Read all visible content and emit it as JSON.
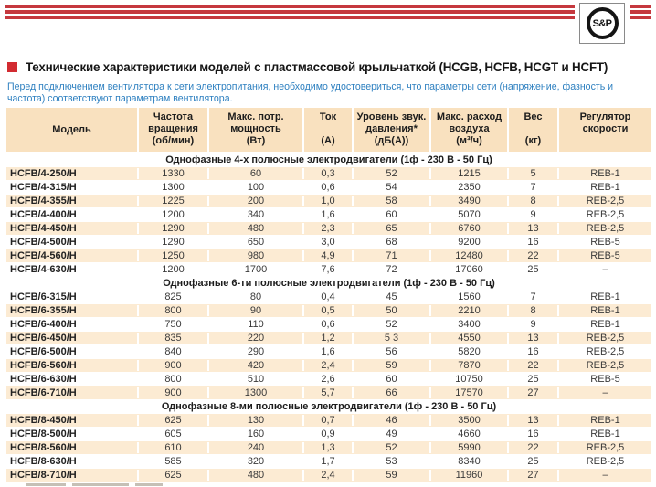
{
  "page": {
    "logo_text": "S&P"
  },
  "title": {
    "text": "Технические характеристики моделей с пластмассовой крыльчаткой (HCGB, HCFB, HCGT и HCFT)"
  },
  "intro": {
    "text": "Перед подключением вентилятора к сети электропитания, необходимо удостовериться, что параметры сети (напряжение, фазность и частота) соответствуют параметрам вентилятора."
  },
  "colors": {
    "accent_red": "#c5383e",
    "bullet_red": "#d22b31",
    "header_peach": "#f9e1bf",
    "row_peach": "#fcebd3",
    "info_blue": "#2e80c0"
  },
  "table": {
    "columns": [
      {
        "id": "model",
        "label_lines": [
          "Модель"
        ]
      },
      {
        "id": "rpm",
        "label_lines": [
          "Частота",
          "вращения",
          "(об/мин)"
        ]
      },
      {
        "id": "power",
        "label_lines": [
          "Макс. потр.",
          "мощность",
          "(Вт)"
        ]
      },
      {
        "id": "current",
        "label_lines": [
          "Ток",
          "",
          "(А)"
        ]
      },
      {
        "id": "noise",
        "label_lines": [
          "Уровень звук.",
          "давления*",
          "(дБ(А))"
        ]
      },
      {
        "id": "airflow",
        "label_lines": [
          "Макс. расход",
          "воздуха",
          "(м³/ч)"
        ]
      },
      {
        "id": "weight",
        "label_lines": [
          "Вес",
          "",
          "(кг)"
        ]
      },
      {
        "id": "regulator",
        "label_lines": [
          "Регулятор",
          "скорости"
        ]
      }
    ],
    "sections": [
      {
        "header": "Однофазные 4-х полюсные электродвигатели (1ф - 230 В - 50 Гц)",
        "rows": [
          [
            "HCFB/4-250/H",
            "1330",
            "60",
            "0,3",
            "52",
            "1215",
            "5",
            "REB-1"
          ],
          [
            "HCFB/4-315/H",
            "1300",
            "100",
            "0,6",
            "54",
            "2350",
            "7",
            "REB-1"
          ],
          [
            "HCFB/4-355/H",
            "1225",
            "200",
            "1,0",
            "58",
            "3490",
            "8",
            "REB-2,5"
          ],
          [
            "HCFB/4-400/H",
            "1200",
            "340",
            "1,6",
            "60",
            "5070",
            "9",
            "REB-2,5"
          ],
          [
            "HCFB/4-450/H",
            "1290",
            "480",
            "2,3",
            "65",
            "6760",
            "13",
            "REB-2,5"
          ],
          [
            "HCFB/4-500/H",
            "1290",
            "650",
            "3,0",
            "68",
            "9200",
            "16",
            "REB-5"
          ],
          [
            "HCFB/4-560/H",
            "1250",
            "980",
            "4,9",
            "71",
            "12480",
            "22",
            "REB-5"
          ],
          [
            "HCFB/4-630/H",
            "1200",
            "1700",
            "7,6",
            "72",
            "17060",
            "25",
            "–"
          ]
        ]
      },
      {
        "header": "Однофазные 6-ти полюсные электродвигатели (1ф - 230 В - 50 Гц)",
        "rows": [
          [
            "HCFB/6-315/H",
            "825",
            "80",
            "0,4",
            "45",
            "1560",
            "7",
            "REB-1"
          ],
          [
            "HCFB/6-355/H",
            "800",
            "90",
            "0,5",
            "50",
            "2210",
            "8",
            "REB-1"
          ],
          [
            "HCFB/6-400/H",
            "750",
            "110",
            "0,6",
            "52",
            "3400",
            "9",
            "REB-1"
          ],
          [
            "HCFB/6-450/H",
            "835",
            "220",
            "1,2",
            "5 3",
            "4550",
            "13",
            "REB-2,5"
          ],
          [
            "HCFB/6-500/H",
            "840",
            "290",
            "1,6",
            "56",
            "5820",
            "16",
            "REB-2,5"
          ],
          [
            "HCFB/6-560/H",
            "900",
            "420",
            "2,4",
            "59",
            "7870",
            "22",
            "REB-2,5"
          ],
          [
            "HCFB/6-630/H",
            "800",
            "510",
            "2,6",
            "60",
            "10750",
            "25",
            "REB-5"
          ],
          [
            "HCFB/6-710/H",
            "900",
            "1300",
            "5,7",
            "66",
            "17570",
            "27",
            "–"
          ]
        ]
      },
      {
        "header": "Однофазные 8-ми полюсные электродвигатели (1ф - 230 В - 50 Гц)",
        "rows": [
          [
            "HCFB/8-450/H",
            "625",
            "130",
            "0,7",
            "46",
            "3500",
            "13",
            "REB-1"
          ],
          [
            "HCFB/8-500/H",
            "605",
            "160",
            "0,9",
            "49",
            "4660",
            "16",
            "REB-1"
          ],
          [
            "HCFB/8-560/H",
            "610",
            "240",
            "1,3",
            "52",
            "5990",
            "22",
            "REB-2,5"
          ],
          [
            "HCFB/8-630/H",
            "585",
            "320",
            "1,7",
            "53",
            "8340",
            "25",
            "REB-2,5"
          ],
          [
            "HCFB/8-710/H",
            "625",
            "480",
            "2,4",
            "59",
            "11960",
            "27",
            "–"
          ]
        ]
      }
    ]
  }
}
